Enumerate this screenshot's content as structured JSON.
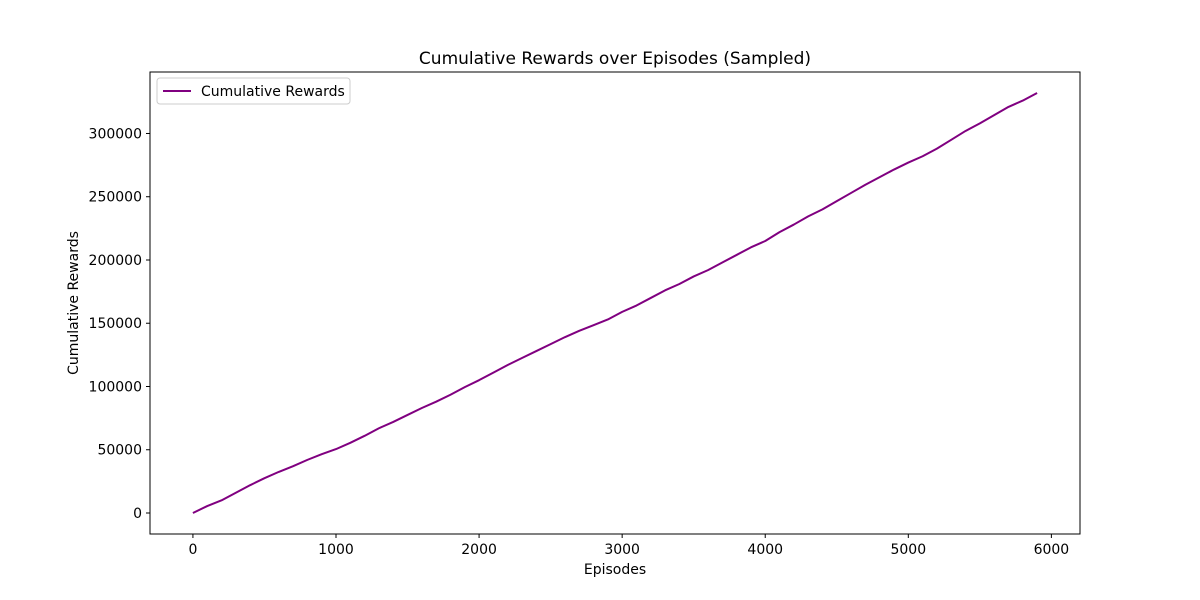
{
  "chart_data": {
    "type": "line",
    "title": "Cumulative Rewards over Episodes (Sampled)",
    "xlabel": "Episodes",
    "ylabel": "Cumulative Rewards",
    "xlim": [
      -300,
      6200
    ],
    "ylim": [
      -16600,
      348600
    ],
    "xticks": [
      0,
      1000,
      2000,
      3000,
      4000,
      5000,
      6000
    ],
    "xtick_labels": [
      "0",
      "1000",
      "2000",
      "3000",
      "4000",
      "5000",
      "6000"
    ],
    "yticks": [
      0,
      50000,
      100000,
      150000,
      200000,
      250000,
      300000
    ],
    "ytick_labels": [
      "0",
      "50000",
      "100000",
      "150000",
      "200000",
      "250000",
      "300000"
    ],
    "grid": false,
    "legend": {
      "position": "top-left",
      "entries": [
        "Cumulative Rewards"
      ]
    },
    "series": [
      {
        "name": "Cumulative Rewards",
        "color": "#800080",
        "x": [
          0,
          100,
          200,
          300,
          400,
          500,
          600,
          700,
          800,
          900,
          1000,
          1100,
          1200,
          1300,
          1400,
          1500,
          1600,
          1700,
          1800,
          1900,
          2000,
          2100,
          2200,
          2300,
          2400,
          2500,
          2600,
          2700,
          2800,
          2900,
          3000,
          3100,
          3200,
          3300,
          3400,
          3500,
          3600,
          3700,
          3800,
          3900,
          4000,
          4100,
          4200,
          4300,
          4400,
          4500,
          4600,
          4700,
          4800,
          4900,
          5000,
          5100,
          5200,
          5300,
          5400,
          5500,
          5600,
          5700,
          5800,
          5900
        ],
        "values": [
          0,
          5500,
          10000,
          16000,
          22000,
          27500,
          32500,
          37000,
          42000,
          46500,
          50500,
          55500,
          61000,
          67000,
          72000,
          77500,
          83000,
          88000,
          93500,
          99500,
          105000,
          111000,
          117000,
          122500,
          128000,
          133500,
          139000,
          144000,
          148500,
          153000,
          159000,
          164000,
          170000,
          176000,
          181000,
          187000,
          192000,
          198000,
          204000,
          210000,
          215000,
          222000,
          228000,
          234500,
          240000,
          246500,
          253000,
          259500,
          265500,
          271500,
          277000,
          282000,
          288000,
          295000,
          302000,
          308000,
          314500,
          321000,
          326000,
          332000
        ]
      }
    ]
  }
}
